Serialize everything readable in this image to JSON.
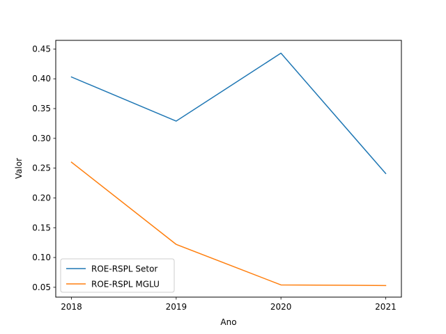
{
  "chart_data": {
    "type": "line",
    "title": "",
    "xlabel": "Ano",
    "ylabel": "Valor",
    "x": [
      2018,
      2019,
      2020,
      2021
    ],
    "xlim": [
      2017.85,
      2021.15
    ],
    "ylim": [
      0.0335,
      0.4645
    ],
    "yticks": [
      0.05,
      0.1,
      0.15,
      0.2,
      0.25,
      0.3,
      0.35,
      0.4,
      0.45
    ],
    "ytick_labels": [
      "0.05",
      "0.10",
      "0.15",
      "0.20",
      "0.25",
      "0.30",
      "0.35",
      "0.40",
      "0.45"
    ],
    "xtick_labels": [
      "2018",
      "2019",
      "2020",
      "2021"
    ],
    "grid": false,
    "legend_position": "lower-left",
    "series": [
      {
        "name": "ROE-RSPL Setor",
        "color": "#1f77b4",
        "values": [
          0.403,
          0.329,
          0.443,
          0.241
        ]
      },
      {
        "name": "ROE-RSPL MGLU",
        "color": "#ff7f0e",
        "values": [
          0.26,
          0.122,
          0.054,
          0.053
        ]
      }
    ]
  }
}
